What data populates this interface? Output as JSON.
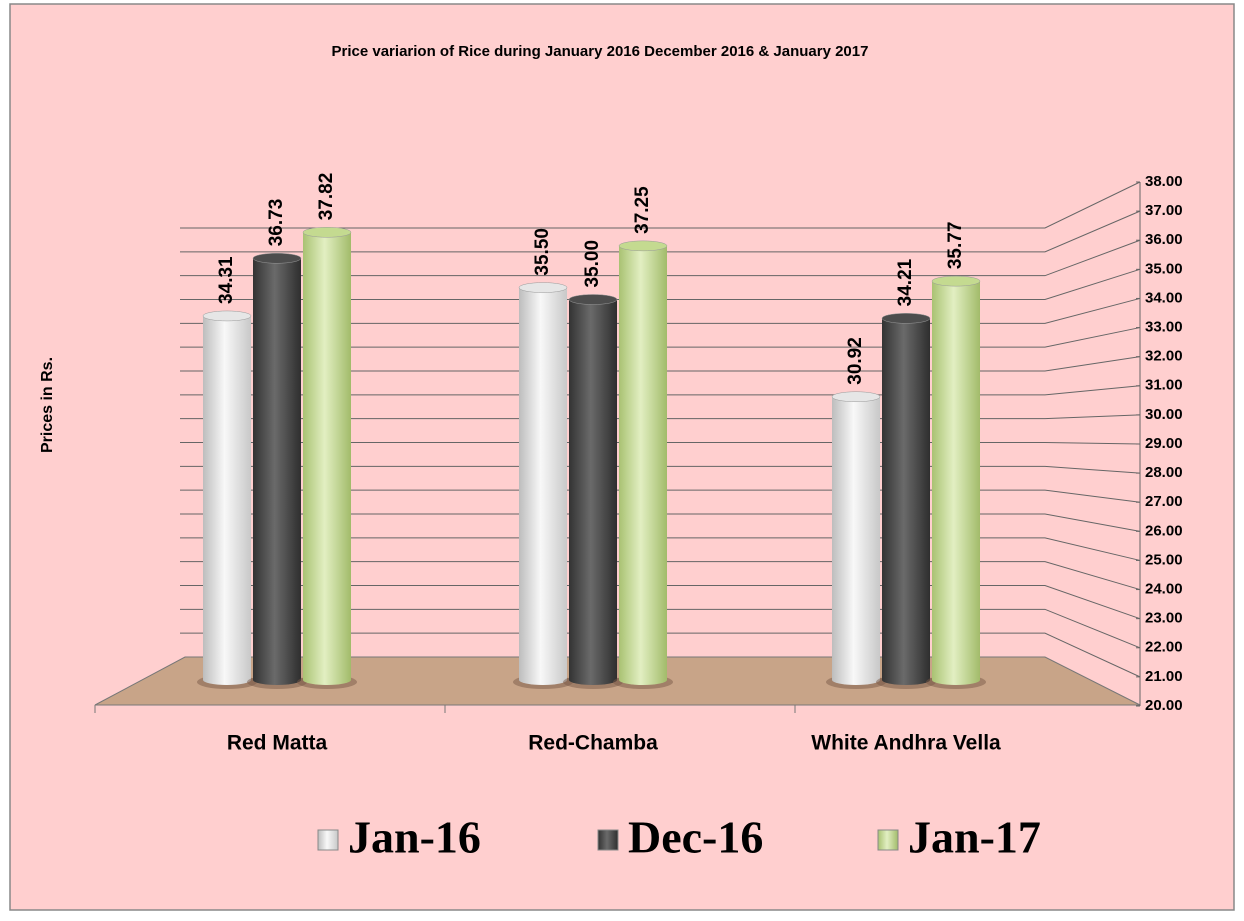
{
  "chart_data": {
    "type": "bar",
    "title": "Price variarion of Rice during  January  2016 December  2016 &  January 2017",
    "y_label": "Prices in Rs.",
    "categories": [
      "Red Matta",
      "Red-Chamba",
      "White Andhra Vella"
    ],
    "series": [
      {
        "name": "Jan-16",
        "color": "#e6e6e6",
        "values": [
          34.31,
          35.5,
          30.92
        ],
        "value_labels": [
          "34.31",
          "35.50",
          "30.92"
        ]
      },
      {
        "name": "Dec-16",
        "color": "#4d4d4d",
        "values": [
          36.73,
          35.0,
          34.21
        ],
        "value_labels": [
          "36.73",
          "35.00",
          "34.21"
        ]
      },
      {
        "name": "Jan-17",
        "color": "#c4da90",
        "values": [
          37.82,
          37.25,
          35.77
        ],
        "value_labels": [
          "37.82",
          "37.25",
          "35.77"
        ]
      }
    ],
    "ylim": [
      20,
      38
    ],
    "yticks": [
      {
        "value": 20,
        "label": "20.00"
      },
      {
        "value": 21,
        "label": "21.00"
      },
      {
        "value": 22,
        "label": "22.00"
      },
      {
        "value": 23,
        "label": "23.00"
      },
      {
        "value": 24,
        "label": "24.00"
      },
      {
        "value": 25,
        "label": "25.00"
      },
      {
        "value": 26,
        "label": "26.00"
      },
      {
        "value": 27,
        "label": "27.00"
      },
      {
        "value": 28,
        "label": "28.00"
      },
      {
        "value": 29,
        "label": "29.00"
      },
      {
        "value": 30,
        "label": "30.00"
      },
      {
        "value": 31,
        "label": "31.00"
      },
      {
        "value": 32,
        "label": "32.00"
      },
      {
        "value": 33,
        "label": "33.00"
      },
      {
        "value": 34,
        "label": "34.00"
      },
      {
        "value": 35,
        "label": "35.00"
      },
      {
        "value": 36,
        "label": "36.00"
      },
      {
        "value": 37,
        "label": "37.00"
      },
      {
        "value": 38,
        "label": "38.00"
      }
    ],
    "grid": true
  }
}
